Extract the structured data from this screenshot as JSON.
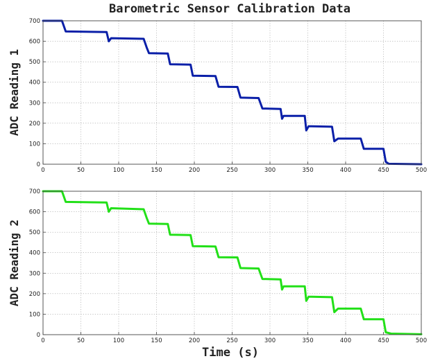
{
  "figure": {
    "title": "Barometric Sensor Calibration Data",
    "xlabel": "Time (s)"
  },
  "chart_data": [
    {
      "type": "line",
      "title": "Barometric Sensor Calibration Data",
      "ylabel": "ADC Reading 1",
      "xlabel": "",
      "xlim": [
        0,
        500
      ],
      "ylim": [
        0,
        700
      ],
      "xticks": [
        0,
        50,
        100,
        150,
        200,
        250,
        300,
        350,
        400,
        450,
        500
      ],
      "yticks": [
        0,
        100,
        200,
        300,
        400,
        500,
        600,
        700
      ],
      "grid": true,
      "color": "#0a1fa8",
      "x": [
        0,
        25,
        30,
        84,
        87,
        90,
        133,
        137,
        140,
        165,
        168,
        195,
        198,
        228,
        232,
        257,
        261,
        285,
        290,
        314,
        316,
        318,
        346,
        348,
        351,
        355,
        382,
        385,
        390,
        420,
        424,
        450,
        453,
        457,
        500
      ],
      "y": [
        700,
        700,
        648,
        645,
        600,
        615,
        612,
        570,
        542,
        540,
        488,
        486,
        432,
        430,
        378,
        377,
        325,
        323,
        272,
        270,
        222,
        236,
        236,
        165,
        185,
        185,
        183,
        112,
        125,
        125,
        75,
        75,
        12,
        2,
        0
      ]
    },
    {
      "type": "line",
      "ylabel": "ADC Reading 2",
      "xlabel": "Time (s)",
      "xlim": [
        0,
        500
      ],
      "ylim": [
        0,
        700
      ],
      "xticks": [
        0,
        50,
        100,
        150,
        200,
        250,
        300,
        350,
        400,
        450,
        500
      ],
      "yticks": [
        0,
        100,
        200,
        300,
        400,
        500,
        600,
        700
      ],
      "grid": true,
      "color": "#22e018",
      "x": [
        0,
        25,
        30,
        84,
        87,
        90,
        133,
        137,
        140,
        165,
        168,
        195,
        198,
        228,
        232,
        257,
        261,
        285,
        290,
        314,
        316,
        318,
        346,
        348,
        351,
        355,
        382,
        385,
        390,
        420,
        424,
        450,
        453,
        460,
        500
      ],
      "y": [
        700,
        700,
        648,
        645,
        600,
        617,
        612,
        570,
        542,
        540,
        488,
        486,
        432,
        430,
        378,
        377,
        325,
        323,
        272,
        270,
        220,
        236,
        236,
        165,
        185,
        185,
        183,
        110,
        127,
        127,
        75,
        75,
        12,
        5,
        2
      ]
    }
  ]
}
